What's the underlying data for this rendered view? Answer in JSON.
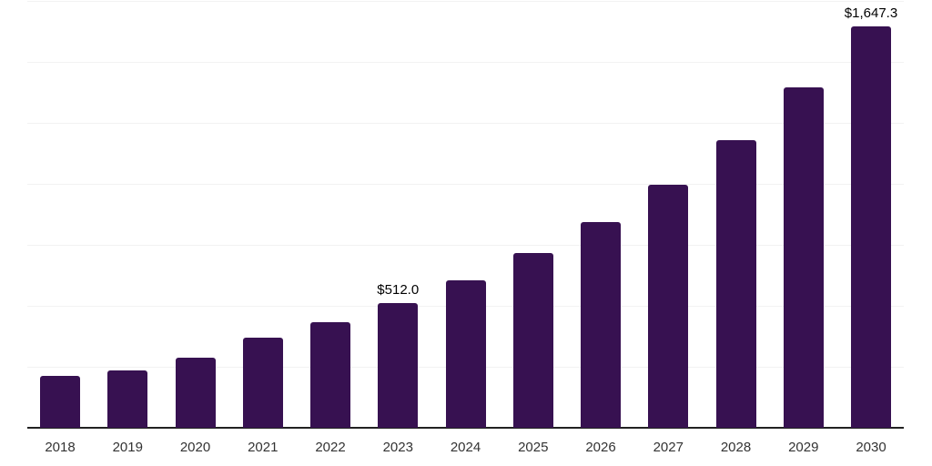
{
  "chart_data": {
    "type": "bar",
    "title": "",
    "xlabel": "",
    "ylabel": "",
    "categories": [
      "2018",
      "2019",
      "2020",
      "2021",
      "2022",
      "2023",
      "2024",
      "2025",
      "2026",
      "2027",
      "2028",
      "2029",
      "2030"
    ],
    "values": [
      213,
      235,
      287,
      369,
      433,
      512.0,
      605,
      715,
      845,
      998,
      1180,
      1394,
      1647.3
    ],
    "bar_labels": [
      "",
      "",
      "",
      "",
      "",
      "$512.0",
      "",
      "",
      "",
      "",
      "",
      "",
      "$1,647.3"
    ],
    "ylim": [
      0,
      1750
    ],
    "gridline_interval": 250,
    "grid": true,
    "legend": "none",
    "colors": {
      "bar": "#371151",
      "axis_line": "#222222",
      "gridline": "#f2f2f2",
      "value_label": "#000000",
      "tick_label": "#333333",
      "background": "#ffffff"
    }
  }
}
